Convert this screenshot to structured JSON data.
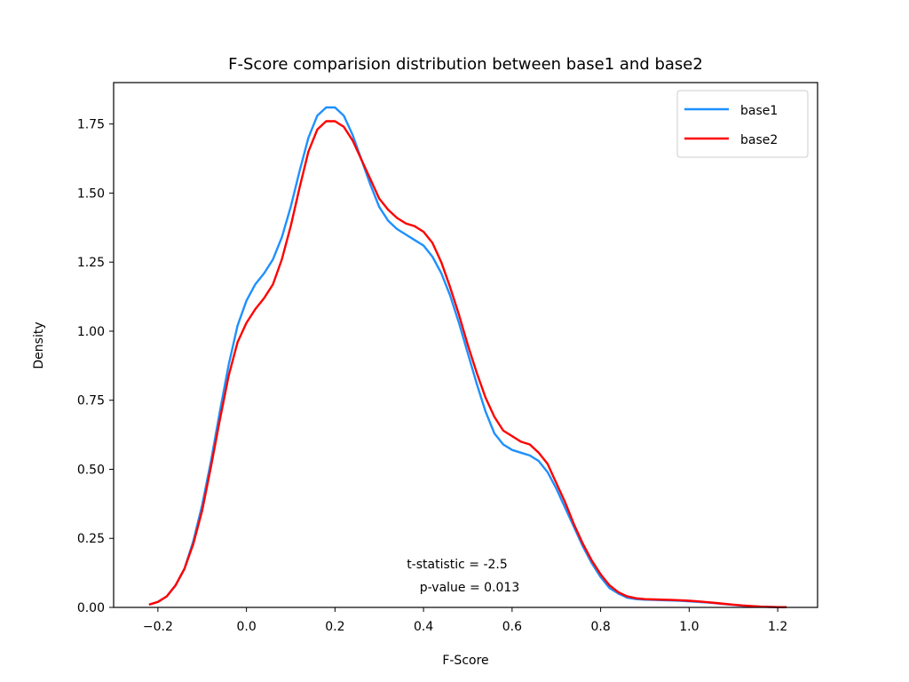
{
  "chart_data": {
    "type": "line",
    "title": "F-Score comparision distribution between base1 and base2",
    "xlabel": "F-Score",
    "ylabel": "Density",
    "xlim": [
      -0.3,
      1.29
    ],
    "ylim": [
      0.0,
      1.9
    ],
    "xticks": [
      -0.2,
      0.0,
      0.2,
      0.4,
      0.6,
      0.8,
      1.0,
      1.2
    ],
    "xtick_labels": [
      "−0.2",
      "0.0",
      "0.2",
      "0.4",
      "0.6",
      "0.8",
      "1.0",
      "1.2"
    ],
    "yticks": [
      0.0,
      0.25,
      0.5,
      0.75,
      1.0,
      1.25,
      1.5,
      1.75
    ],
    "ytick_labels": [
      "0.00",
      "0.25",
      "0.50",
      "0.75",
      "1.00",
      "1.25",
      "1.50",
      "1.75"
    ],
    "grid": false,
    "legend_position": "top-right",
    "series": [
      {
        "name": "base1",
        "color": "#1e90ff",
        "x": [
          -0.22,
          -0.2,
          -0.18,
          -0.16,
          -0.14,
          -0.12,
          -0.1,
          -0.08,
          -0.06,
          -0.04,
          -0.02,
          0.0,
          0.02,
          0.04,
          0.06,
          0.08,
          0.1,
          0.12,
          0.14,
          0.16,
          0.18,
          0.2,
          0.22,
          0.24,
          0.26,
          0.28,
          0.3,
          0.32,
          0.34,
          0.36,
          0.38,
          0.4,
          0.42,
          0.44,
          0.46,
          0.48,
          0.5,
          0.52,
          0.54,
          0.56,
          0.58,
          0.6,
          0.62,
          0.64,
          0.66,
          0.68,
          0.7,
          0.72,
          0.74,
          0.76,
          0.78,
          0.8,
          0.82,
          0.84,
          0.86,
          0.88,
          0.9,
          0.92,
          0.94,
          0.96,
          0.98,
          1.0,
          1.02,
          1.04,
          1.06,
          1.08,
          1.1,
          1.12,
          1.14,
          1.16,
          1.18,
          1.2,
          1.22
        ],
        "y": [
          0.01,
          0.02,
          0.04,
          0.08,
          0.14,
          0.24,
          0.37,
          0.53,
          0.71,
          0.88,
          1.02,
          1.11,
          1.17,
          1.21,
          1.26,
          1.34,
          1.45,
          1.58,
          1.7,
          1.78,
          1.81,
          1.81,
          1.78,
          1.71,
          1.62,
          1.53,
          1.45,
          1.4,
          1.37,
          1.35,
          1.33,
          1.31,
          1.27,
          1.21,
          1.13,
          1.03,
          0.92,
          0.81,
          0.71,
          0.63,
          0.59,
          0.57,
          0.56,
          0.55,
          0.53,
          0.49,
          0.43,
          0.36,
          0.29,
          0.22,
          0.16,
          0.11,
          0.07,
          0.05,
          0.035,
          0.03,
          0.028,
          0.027,
          0.026,
          0.025,
          0.024,
          0.022,
          0.02,
          0.018,
          0.015,
          0.012,
          0.009,
          0.006,
          0.004,
          0.003,
          0.002,
          0.001,
          0.001
        ]
      },
      {
        "name": "base2",
        "color": "#ff0000",
        "x": [
          -0.22,
          -0.2,
          -0.18,
          -0.16,
          -0.14,
          -0.12,
          -0.1,
          -0.08,
          -0.06,
          -0.04,
          -0.02,
          0.0,
          0.02,
          0.04,
          0.06,
          0.08,
          0.1,
          0.12,
          0.14,
          0.16,
          0.18,
          0.2,
          0.22,
          0.24,
          0.26,
          0.28,
          0.3,
          0.32,
          0.34,
          0.36,
          0.38,
          0.4,
          0.42,
          0.44,
          0.46,
          0.48,
          0.5,
          0.52,
          0.54,
          0.56,
          0.58,
          0.6,
          0.62,
          0.64,
          0.66,
          0.68,
          0.7,
          0.72,
          0.74,
          0.76,
          0.78,
          0.8,
          0.82,
          0.84,
          0.86,
          0.88,
          0.9,
          0.92,
          0.94,
          0.96,
          0.98,
          1.0,
          1.02,
          1.04,
          1.06,
          1.08,
          1.1,
          1.12,
          1.14,
          1.16,
          1.18,
          1.2,
          1.22
        ],
        "y": [
          0.01,
          0.02,
          0.04,
          0.08,
          0.14,
          0.23,
          0.35,
          0.51,
          0.68,
          0.84,
          0.96,
          1.03,
          1.08,
          1.12,
          1.17,
          1.26,
          1.38,
          1.52,
          1.65,
          1.73,
          1.76,
          1.76,
          1.74,
          1.69,
          1.62,
          1.55,
          1.48,
          1.44,
          1.41,
          1.39,
          1.38,
          1.36,
          1.32,
          1.25,
          1.16,
          1.06,
          0.95,
          0.85,
          0.76,
          0.69,
          0.64,
          0.62,
          0.6,
          0.59,
          0.56,
          0.52,
          0.45,
          0.38,
          0.3,
          0.23,
          0.17,
          0.12,
          0.08,
          0.055,
          0.04,
          0.033,
          0.03,
          0.029,
          0.028,
          0.027,
          0.026,
          0.024,
          0.022,
          0.019,
          0.016,
          0.013,
          0.01,
          0.007,
          0.005,
          0.003,
          0.002,
          0.001,
          0.001
        ]
      }
    ],
    "annotations": [
      "t-statistic = -2.5",
      "p-value = 0.013"
    ]
  }
}
